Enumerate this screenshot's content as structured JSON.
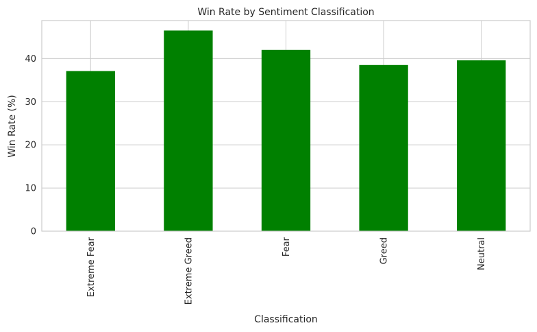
{
  "chart_data": {
    "type": "bar",
    "title": "Win Rate by Sentiment Classification",
    "xlabel": "Classification",
    "ylabel": "Win Rate (%)",
    "categories": [
      "Extreme Fear",
      "Extreme Greed",
      "Fear",
      "Greed",
      "Neutral"
    ],
    "values": [
      37.1,
      46.5,
      42.0,
      38.5,
      39.6
    ],
    "ylim": [
      0,
      48.8
    ],
    "yticks": [
      0,
      10,
      20,
      30,
      40
    ],
    "grid": true,
    "bar_color": "#008000"
  }
}
